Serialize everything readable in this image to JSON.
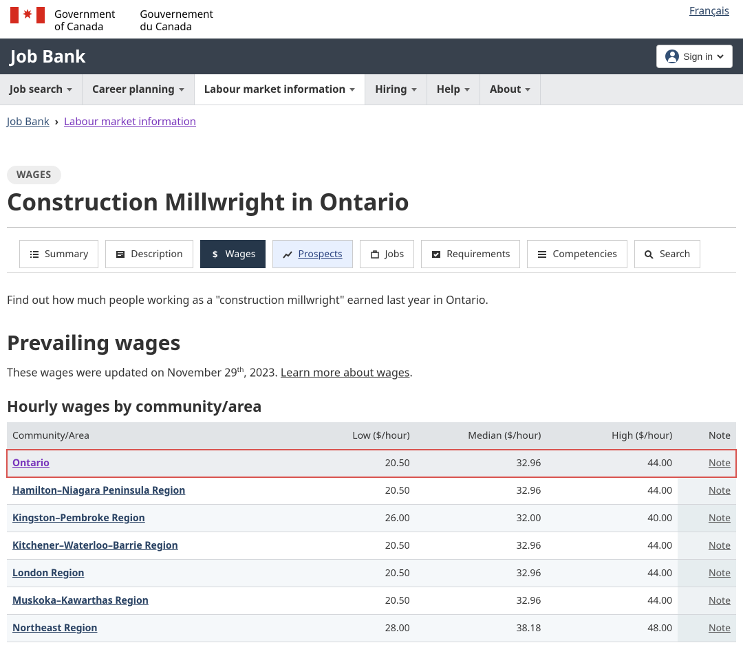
{
  "header": {
    "gov_en1": "Government",
    "gov_en2": "of Canada",
    "gov_fr1": "Gouvernement",
    "gov_fr2": "du Canada",
    "lang_link": "Français"
  },
  "app": {
    "title": "Job Bank",
    "signin": "Sign in"
  },
  "nav": {
    "items": [
      {
        "label": "Job search"
      },
      {
        "label": "Career planning"
      },
      {
        "label": "Labour market information"
      },
      {
        "label": "Hiring"
      },
      {
        "label": "Help"
      },
      {
        "label": "About"
      }
    ],
    "active_index": 2
  },
  "breadcrumb": {
    "first": "Job Bank",
    "second": "Labour market information"
  },
  "page": {
    "badge": "WAGES",
    "title": "Construction Millwright in Ontario",
    "intro": "Find out how much people working as a \"construction millwright\" earned last year in Ontario.",
    "section_h2": "Prevailing wages",
    "updated_pre": "These wages were updated on November 29",
    "updated_sup": "th",
    "updated_post": ", 2023. ",
    "learn_more": "Learn more about wages",
    "table_h3": "Hourly wages by community/area"
  },
  "subtabs": {
    "items": [
      {
        "label": "Summary"
      },
      {
        "label": "Description"
      },
      {
        "label": "Wages"
      },
      {
        "label": "Prospects"
      },
      {
        "label": "Jobs"
      },
      {
        "label": "Requirements"
      },
      {
        "label": "Competencies"
      },
      {
        "label": "Search"
      }
    ],
    "active_index": 2,
    "highlight_index": 3
  },
  "table": {
    "headers": {
      "area": "Community/Area",
      "low": "Low ($/hour)",
      "median": "Median ($/hour)",
      "high": "High ($/hour)",
      "note": "Note"
    },
    "note_label": "Note",
    "rows": [
      {
        "area": "Ontario",
        "low": "20.50",
        "median": "32.96",
        "high": "44.00",
        "highlight": true
      },
      {
        "area": "Hamilton–Niagara Peninsula Region",
        "low": "20.50",
        "median": "32.96",
        "high": "44.00"
      },
      {
        "area": "Kingston–Pembroke Region",
        "low": "26.00",
        "median": "32.00",
        "high": "40.00"
      },
      {
        "area": "Kitchener–Waterloo–Barrie Region",
        "low": "20.50",
        "median": "32.96",
        "high": "44.00"
      },
      {
        "area": "London Region",
        "low": "20.50",
        "median": "32.96",
        "high": "44.00"
      },
      {
        "area": "Muskoka–Kawarthas Region",
        "low": "20.50",
        "median": "32.96",
        "high": "44.00"
      },
      {
        "area": "Northeast Region",
        "low": "28.00",
        "median": "38.18",
        "high": "48.00"
      }
    ]
  },
  "colors": {
    "accent_nav": "#38414d",
    "tab_active": "#26374a",
    "link": "#284162",
    "visited": "#7834bc",
    "highlight_border": "#d9534f"
  }
}
